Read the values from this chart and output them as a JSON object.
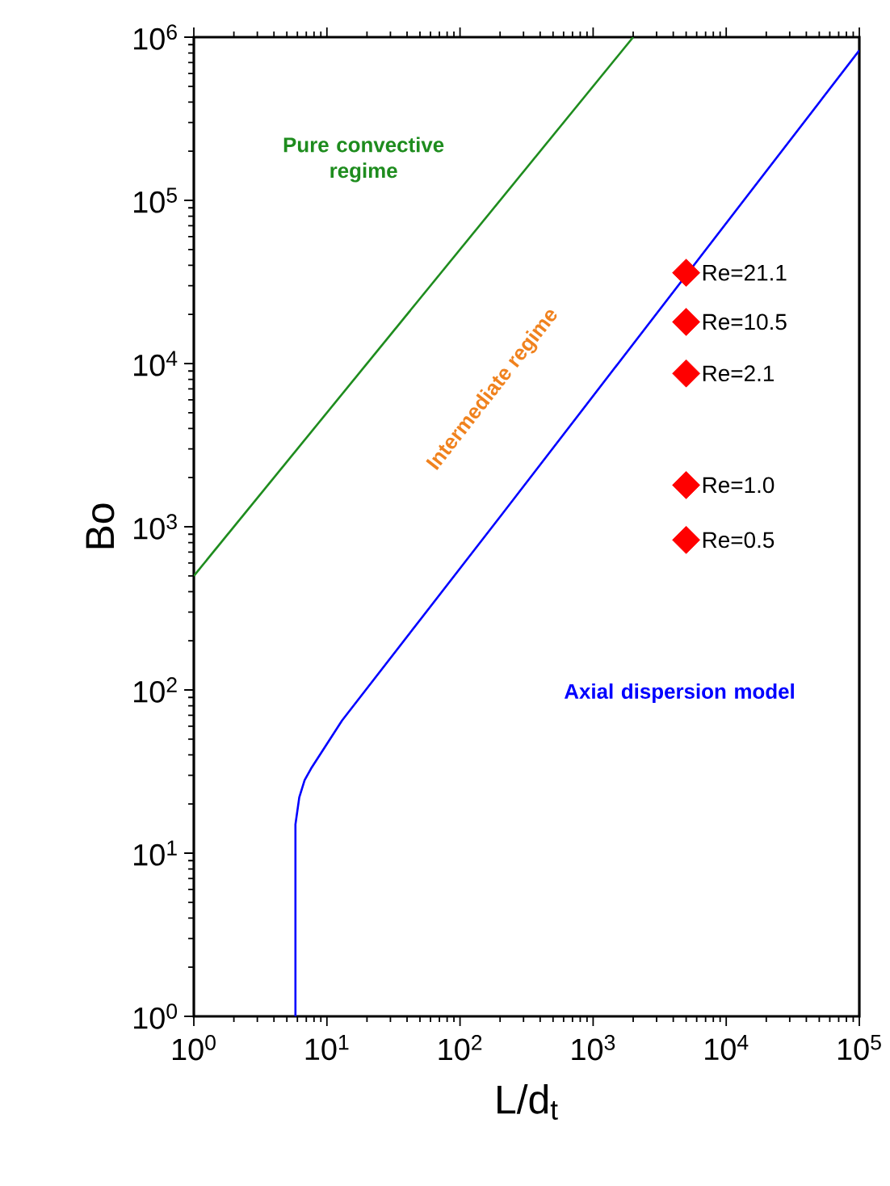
{
  "chart_data": {
    "type": "line",
    "xlabel": "L/d$_{t}$",
    "ylabel": "Bo",
    "log": "xy",
    "xlim": [
      1,
      100000
    ],
    "ylim": [
      1,
      1000000
    ],
    "xticks": [
      {
        "value": 1,
        "label": "10$^{0}$"
      },
      {
        "value": 10,
        "label": "10$^{1}$"
      },
      {
        "value": 100,
        "label": "10$^{2}$"
      },
      {
        "value": 1000,
        "label": "10$^{3}$"
      },
      {
        "value": 10000,
        "label": "10$^{4}$"
      },
      {
        "value": 100000,
        "label": "10$^{5}$"
      }
    ],
    "yticks": [
      {
        "value": 1,
        "label": "10$^{0}$"
      },
      {
        "value": 10,
        "label": "10$^{1}$"
      },
      {
        "value": 100,
        "label": "10$^{2}$"
      },
      {
        "value": 1000,
        "label": "10$^{3}$"
      },
      {
        "value": 10000,
        "label": "10$^{4}$"
      },
      {
        "value": 100000,
        "label": "10$^{5}$"
      },
      {
        "value": 1000000,
        "label": "10$^{6}$"
      }
    ],
    "series": [
      {
        "name": "Pure convective regime",
        "color": "#1e8c1e",
        "x": [
          1,
          2000
        ],
        "values": [
          500,
          1000000
        ]
      },
      {
        "name": "Axial dispersion model",
        "color": "#0000ff",
        "x": [
          5.8,
          5.8,
          6.2,
          6.8,
          7.6,
          13,
          208,
          100000
        ],
        "values": [
          1,
          15,
          22,
          28,
          33,
          65,
          1200,
          830000
        ]
      },
      {
        "type": "scatter",
        "color": "#ff0000",
        "marker": "diamond",
        "x": [
          5000,
          5000,
          5000,
          5000,
          5000
        ],
        "values": [
          36000,
          18000,
          8700,
          1800,
          830
        ]
      }
    ],
    "annotations": [
      "Intermediate regime",
      "Re=21.1",
      "Re=10.5",
      "Re=2.1",
      "Re=1.0",
      "Re=0.5"
    ]
  }
}
